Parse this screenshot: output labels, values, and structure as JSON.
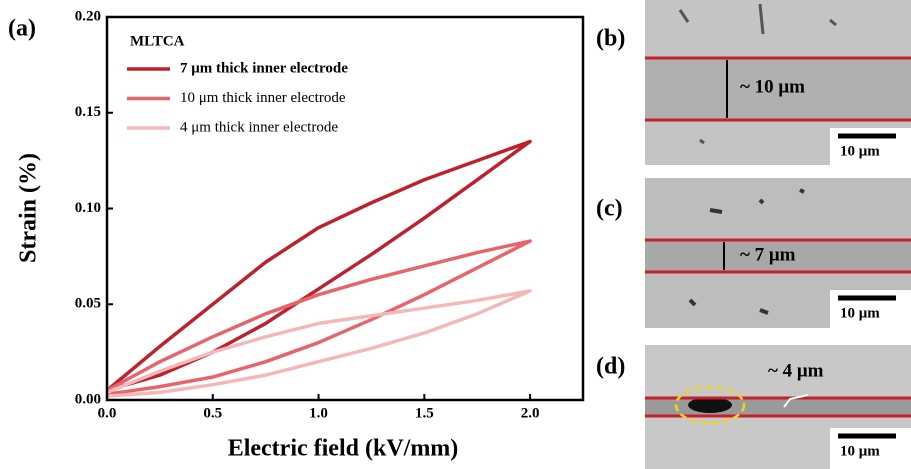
{
  "chart_data": {
    "type": "line",
    "panel_label": "(a)",
    "legend_title": "MLTCA",
    "xlabel": "Electric field (kV/mm)",
    "ylabel": "Strain (%)",
    "xlim": [
      0,
      2.25
    ],
    "ylim": [
      0,
      0.2
    ],
    "xticks": [
      {
        "value": 0,
        "label": "0.0"
      },
      0.5,
      {
        "value": 1,
        "label": "1.0"
      },
      1.5,
      {
        "value": 2,
        "label": "2.0"
      }
    ],
    "yticks": [
      {
        "value": 0,
        "label": "0.00"
      },
      0.05,
      {
        "value": 0.1,
        "label": "0.10"
      },
      0.15,
      {
        "value": 0.2,
        "label": "0.20"
      }
    ],
    "series": [
      {
        "name": "7 μm thick inner electrode",
        "color": "#c0202a",
        "x": [
          0,
          0.25,
          0.5,
          0.75,
          1,
          1.25,
          1.5,
          1.75,
          2,
          1.75,
          1.5,
          1.25,
          1,
          0.75,
          0.5,
          0.25,
          0
        ],
        "values": [
          0.005,
          0.013,
          0.025,
          0.04,
          0.058,
          0.076,
          0.095,
          0.115,
          0.135,
          0.125,
          0.115,
          0.103,
          0.09,
          0.072,
          0.05,
          0.028,
          0.005
        ]
      },
      {
        "name": "10 μm thick inner electrode",
        "color": "#e8646a",
        "x": [
          0,
          0.25,
          0.5,
          0.75,
          1,
          1.25,
          1.5,
          1.75,
          2,
          1.75,
          1.5,
          1.25,
          1,
          0.75,
          0.5,
          0.25,
          0
        ],
        "values": [
          0.003,
          0.007,
          0.012,
          0.02,
          0.03,
          0.042,
          0.055,
          0.069,
          0.083,
          0.077,
          0.07,
          0.063,
          0.055,
          0.045,
          0.033,
          0.02,
          0.005
        ]
      },
      {
        "name": "4 μm thick inner electrode",
        "color": "#f4b8b8",
        "x": [
          0,
          0.25,
          0.5,
          0.75,
          1,
          1.25,
          1.5,
          1.75,
          2,
          1.75,
          1.5,
          1.25,
          1,
          0.75,
          0.5,
          0.25,
          0
        ],
        "values": [
          0.002,
          0.004,
          0.008,
          0.013,
          0.02,
          0.027,
          0.035,
          0.045,
          0.057,
          0.052,
          0.048,
          0.044,
          0.04,
          0.033,
          0.025,
          0.015,
          0.004
        ]
      }
    ]
  },
  "panels": [
    {
      "label": "(b)",
      "annotation": "~ 10 μm",
      "scale_bar": "10 μm"
    },
    {
      "label": "(c)",
      "annotation": "~ 7 μm",
      "scale_bar": "10 μm"
    },
    {
      "label": "(d)",
      "annotation": "~ 4 μm",
      "scale_bar": "10 μm"
    }
  ]
}
